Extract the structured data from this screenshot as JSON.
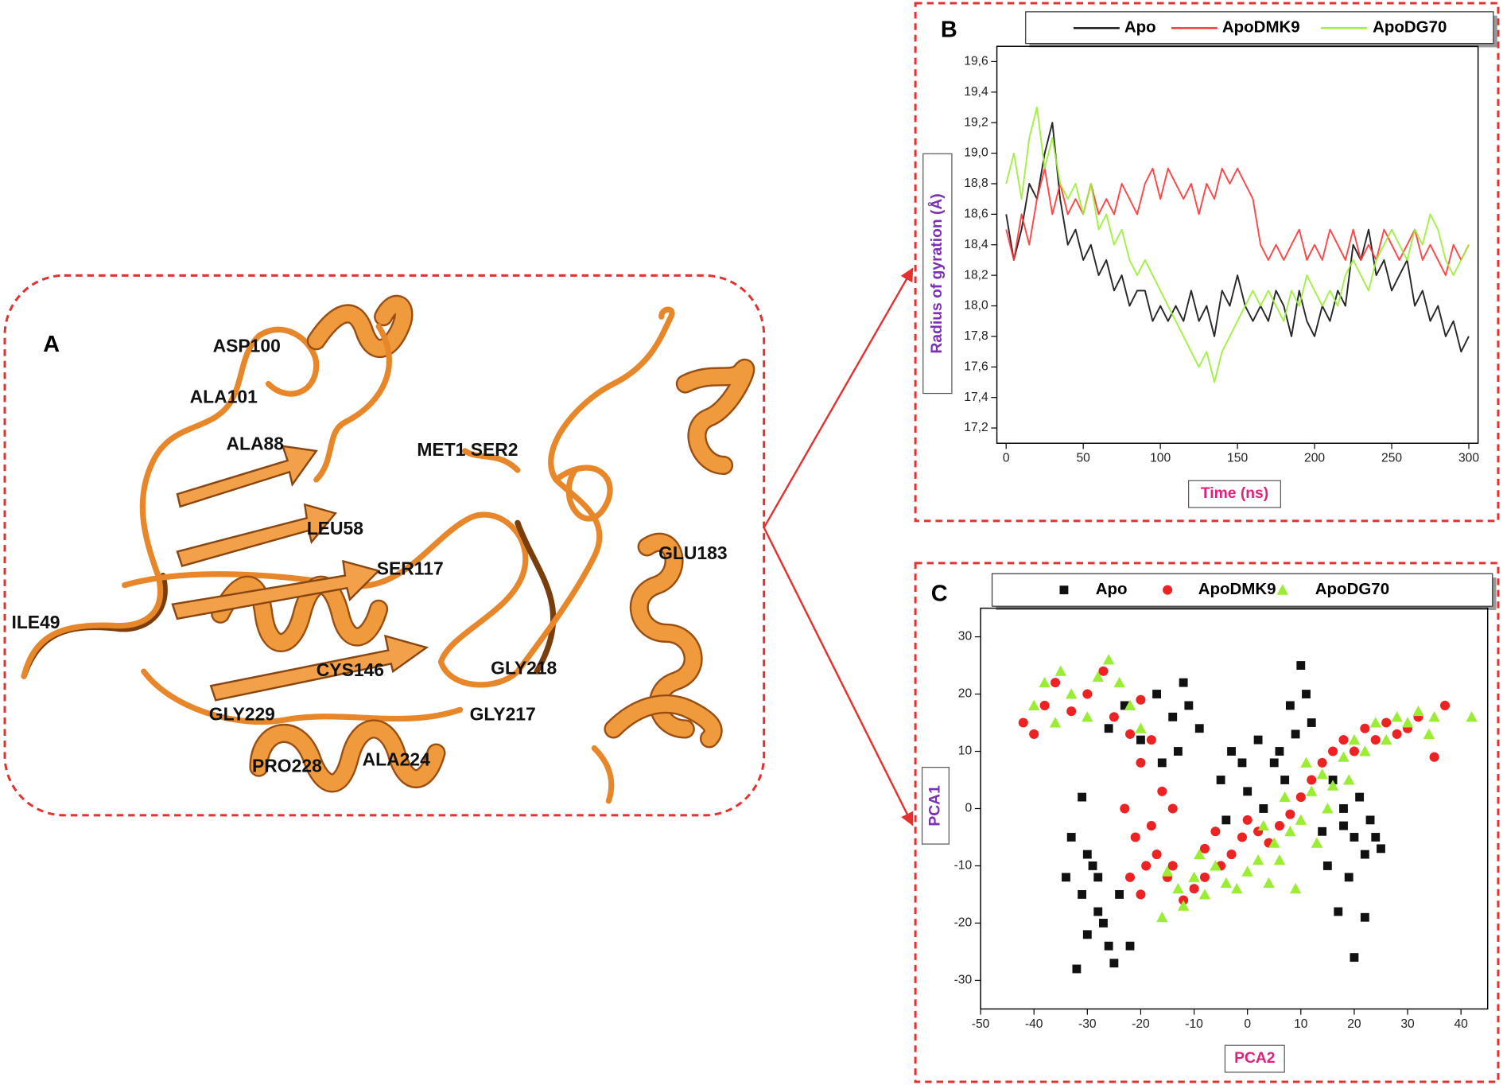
{
  "panel_a": {
    "label": "A",
    "residues": [
      "ASP100",
      "ALA101",
      "ALA88",
      "MET1 SER2",
      "LEU58",
      "SER117",
      "GLU183",
      "ILE49",
      "CYS146",
      "GLY218",
      "GLY229",
      "GLY217",
      "PRO228",
      "ALA224"
    ]
  },
  "chart_data": [
    {
      "type": "line",
      "label": "B",
      "xlabel": "Time (ns)",
      "ylabel": "Radius of gyration (Å)",
      "legend": "top",
      "xlim": [
        -6,
        306
      ],
      "ylim": [
        17.1,
        19.7
      ],
      "xticks": [
        0,
        50,
        100,
        150,
        200,
        250,
        300
      ],
      "yticks": [
        {
          "value": 17.2,
          "label": "17,2"
        },
        {
          "value": 17.4,
          "label": "17,4"
        },
        {
          "value": 17.6,
          "label": "17,6"
        },
        {
          "value": 17.8,
          "label": "17,8"
        },
        {
          "value": 18.0,
          "label": "18,0"
        },
        {
          "value": 18.2,
          "label": "18,2"
        },
        {
          "value": 18.4,
          "label": "18,4"
        },
        {
          "value": 18.6,
          "label": "18,6"
        },
        {
          "value": 18.8,
          "label": "18,8"
        },
        {
          "value": 19.0,
          "label": "19,0"
        },
        {
          "value": 19.2,
          "label": "19,2"
        },
        {
          "value": 19.4,
          "label": "19,4"
        },
        {
          "value": 19.6,
          "label": "19,6"
        }
      ],
      "x": [
        0,
        5,
        10,
        15,
        20,
        25,
        30,
        35,
        40,
        45,
        50,
        55,
        60,
        65,
        70,
        75,
        80,
        85,
        90,
        95,
        100,
        105,
        110,
        115,
        120,
        125,
        130,
        135,
        140,
        145,
        150,
        155,
        160,
        165,
        170,
        175,
        180,
        185,
        190,
        195,
        200,
        205,
        210,
        215,
        220,
        225,
        230,
        235,
        240,
        245,
        250,
        255,
        260,
        265,
        270,
        275,
        280,
        285,
        290,
        295,
        300
      ],
      "series": [
        {
          "name": "Apo",
          "color": "#111111",
          "values": [
            18.6,
            18.3,
            18.5,
            18.8,
            18.7,
            19.0,
            19.2,
            18.7,
            18.4,
            18.5,
            18.3,
            18.4,
            18.2,
            18.3,
            18.1,
            18.2,
            18.0,
            18.1,
            18.1,
            17.9,
            18.0,
            17.9,
            18.0,
            17.9,
            18.1,
            17.9,
            18.0,
            17.8,
            18.1,
            18.0,
            18.2,
            18.0,
            17.9,
            18.0,
            17.9,
            18.1,
            18.0,
            17.8,
            18.1,
            17.9,
            17.8,
            18.0,
            17.9,
            18.1,
            18.0,
            18.4,
            18.3,
            18.5,
            18.2,
            18.3,
            18.1,
            18.2,
            18.3,
            18.0,
            18.1,
            17.9,
            18.0,
            17.8,
            17.9,
            17.7,
            17.8
          ]
        },
        {
          "name": "ApoDMK9",
          "color": "#ff3333",
          "values": [
            18.5,
            18.3,
            18.6,
            18.4,
            18.7,
            18.9,
            18.6,
            18.8,
            18.6,
            18.7,
            18.6,
            18.8,
            18.6,
            18.7,
            18.6,
            18.8,
            18.7,
            18.6,
            18.8,
            18.9,
            18.7,
            18.9,
            18.8,
            18.7,
            18.8,
            18.6,
            18.8,
            18.7,
            18.9,
            18.8,
            18.9,
            18.8,
            18.7,
            18.4,
            18.3,
            18.4,
            18.3,
            18.4,
            18.5,
            18.3,
            18.4,
            18.3,
            18.5,
            18.4,
            18.3,
            18.5,
            18.3,
            18.4,
            18.3,
            18.5,
            18.4,
            18.3,
            18.4,
            18.5,
            18.3,
            18.4,
            18.3,
            18.2,
            18.4,
            18.3,
            18.4
          ]
        },
        {
          "name": "ApoDG70",
          "color": "#99ee33",
          "values": [
            18.8,
            19.0,
            18.7,
            19.1,
            19.3,
            18.9,
            19.1,
            18.8,
            18.7,
            18.8,
            18.6,
            18.8,
            18.5,
            18.6,
            18.4,
            18.5,
            18.3,
            18.2,
            18.3,
            18.2,
            18.1,
            18.0,
            17.9,
            17.8,
            17.7,
            17.6,
            17.7,
            17.5,
            17.7,
            17.8,
            17.9,
            18.0,
            18.1,
            18.0,
            18.1,
            18.0,
            17.9,
            18.1,
            18.0,
            18.2,
            18.1,
            18.0,
            18.1,
            18.0,
            18.2,
            18.3,
            18.2,
            18.1,
            18.3,
            18.4,
            18.5,
            18.4,
            18.3,
            18.5,
            18.4,
            18.6,
            18.5,
            18.3,
            18.2,
            18.3,
            18.4
          ]
        }
      ]
    },
    {
      "type": "scatter",
      "label": "C",
      "xlabel": "PCA2",
      "ylabel": "PCA1",
      "legend": "top",
      "xlim": [
        -50,
        45
      ],
      "ylim": [
        -35,
        35
      ],
      "xticks": [
        -50,
        -40,
        -30,
        -20,
        -10,
        0,
        10,
        20,
        30,
        40
      ],
      "yticks": [
        -30,
        -20,
        -10,
        0,
        10,
        20,
        30
      ],
      "series": [
        {
          "name": "Apo",
          "color": "#111111",
          "marker": "square",
          "x": [
            -32,
            -30,
            -28,
            -26,
            -31,
            -34,
            -29,
            -33,
            -31,
            -27,
            -25,
            -28,
            -30,
            -24,
            -22,
            -26,
            -23,
            -20,
            -17,
            -14,
            -12,
            -11,
            -13,
            -16,
            -9,
            -5,
            -3,
            -1,
            0,
            2,
            -4,
            3,
            5,
            7,
            8,
            10,
            11,
            9,
            6,
            12,
            16,
            18,
            20,
            22,
            19,
            17,
            20,
            22,
            24,
            25,
            15,
            18,
            21,
            23,
            14
          ],
          "values": [
            -28,
            -22,
            -18,
            -24,
            -15,
            -12,
            -10,
            -5,
            2,
            -20,
            -27,
            -12,
            -8,
            -15,
            -24,
            14,
            18,
            12,
            20,
            16,
            22,
            18,
            10,
            8,
            14,
            5,
            10,
            8,
            3,
            12,
            -2,
            0,
            8,
            5,
            18,
            25,
            20,
            13,
            10,
            15,
            5,
            0,
            -5,
            -8,
            -12,
            -18,
            -26,
            -19,
            -5,
            -7,
            -10,
            -3,
            2,
            -2,
            -4
          ]
        },
        {
          "name": "ApoDMK9",
          "color": "#ee2222",
          "marker": "circle",
          "x": [
            -42,
            -40,
            -38,
            -36,
            -33,
            -30,
            -27,
            -25,
            -22,
            -20,
            -18,
            -20,
            -23,
            -21,
            -19,
            -22,
            -20,
            -18,
            -16,
            -17,
            -15,
            -12,
            -14,
            -10,
            -8,
            -5,
            -3,
            -1,
            0,
            2,
            4,
            6,
            8,
            10,
            12,
            14,
            16,
            18,
            20,
            22,
            24,
            26,
            28,
            30,
            32,
            35,
            37,
            -8,
            -6,
            -14
          ],
          "values": [
            15,
            13,
            18,
            22,
            17,
            20,
            24,
            16,
            13,
            19,
            12,
            8,
            0,
            -5,
            -10,
            -12,
            -15,
            -3,
            3,
            -8,
            -12,
            -16,
            -10,
            -14,
            -12,
            -10,
            -8,
            -5,
            -2,
            -4,
            -6,
            -3,
            -1,
            2,
            5,
            8,
            10,
            12,
            10,
            14,
            12,
            15,
            13,
            14,
            16,
            9,
            18,
            -7,
            -4,
            0
          ]
        },
        {
          "name": "ApoDG70",
          "color": "#99ee33",
          "marker": "triangle",
          "x": [
            -40,
            -38,
            -36,
            -35,
            -33,
            -30,
            -28,
            -26,
            -24,
            -22,
            -20,
            -15,
            -13,
            -12,
            -10,
            -8,
            -6,
            -4,
            -2,
            0,
            2,
            4,
            5,
            6,
            8,
            9,
            10,
            12,
            13,
            14,
            15,
            16,
            18,
            19,
            20,
            22,
            24,
            26,
            28,
            30,
            32,
            34,
            35,
            42,
            -16,
            -9,
            3,
            7,
            11
          ],
          "values": [
            18,
            22,
            15,
            24,
            20,
            16,
            23,
            26,
            22,
            18,
            14,
            -11,
            -14,
            -17,
            -12,
            -15,
            -10,
            -13,
            -14,
            -11,
            -9,
            -13,
            -6,
            -9,
            -4,
            -14,
            -2,
            3,
            -6,
            6,
            0,
            4,
            9,
            5,
            12,
            10,
            15,
            12,
            16,
            15,
            17,
            13,
            16,
            16,
            -19,
            -8,
            -3,
            2,
            8
          ]
        }
      ]
    }
  ]
}
